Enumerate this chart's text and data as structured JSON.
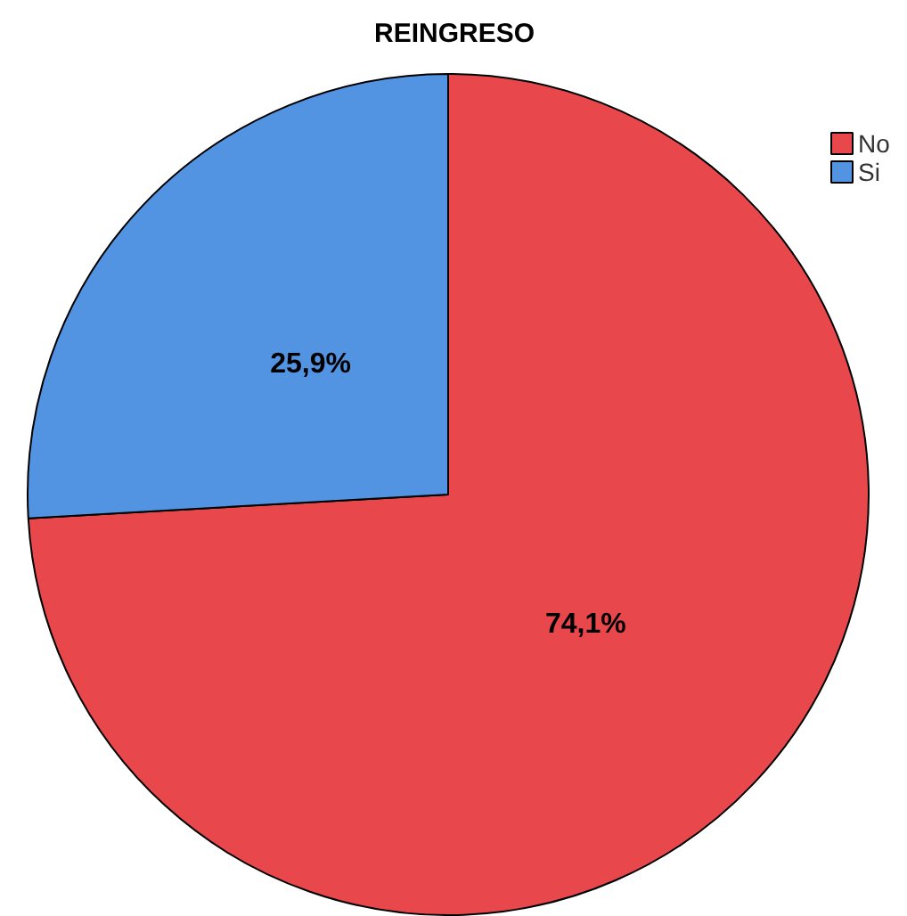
{
  "chart_data": {
    "type": "pie",
    "title": "REINGRESO",
    "categories": [
      "No",
      "Si"
    ],
    "values": [
      74.1,
      25.9
    ],
    "colors": [
      "#e8484b",
      "#5294e2"
    ],
    "value_labels": [
      "74,1%",
      "25,9%"
    ],
    "legend": "top right"
  }
}
